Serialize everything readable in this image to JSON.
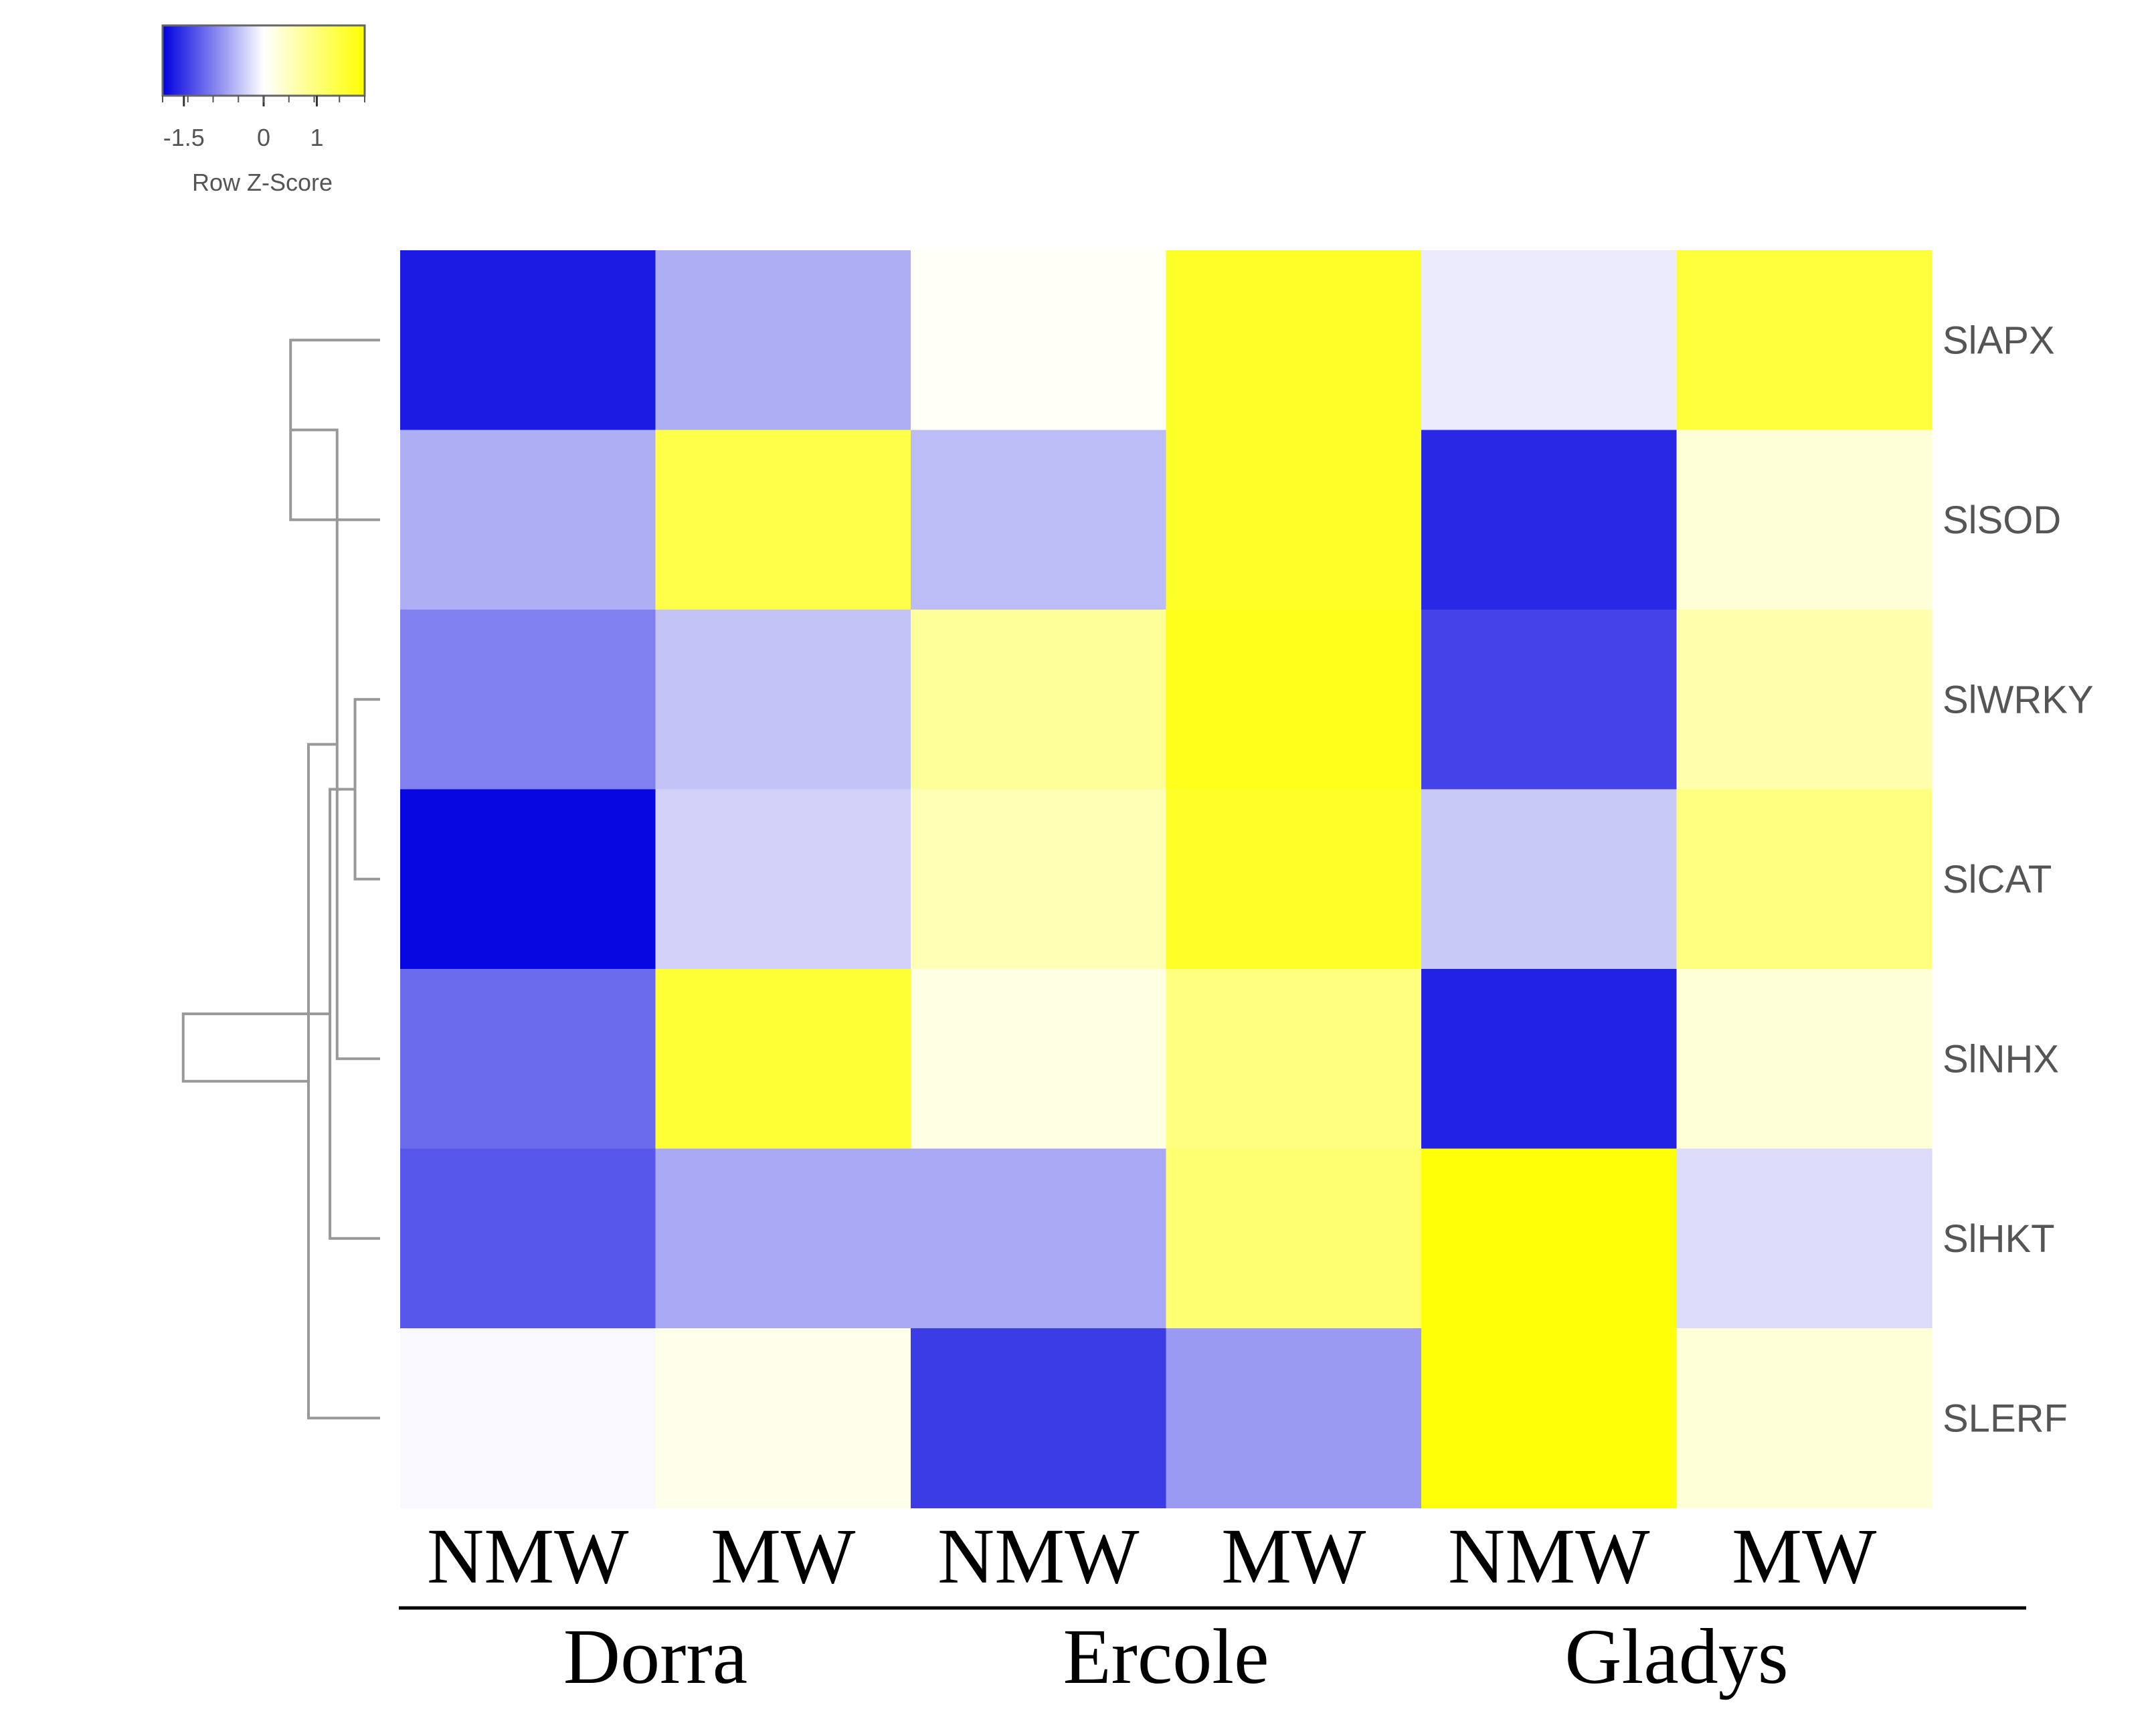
{
  "chart_data": {
    "type": "heatmap",
    "legend": {
      "title": "Row Z-Score",
      "ticks": [
        "-1.5",
        "0",
        "1"
      ],
      "tick_values": [
        -1.5,
        0,
        1
      ],
      "range": [
        -1.9,
        1.9
      ],
      "colors": {
        "low": "#0000e0",
        "mid": "#ffffff",
        "high": "#ffff00"
      },
      "placement": "top-left"
    },
    "columns": [
      "NMW",
      "MW",
      "NMW",
      "MW",
      "NMW",
      "MW"
    ],
    "groups": [
      {
        "label": "Dorra",
        "span": 2
      },
      {
        "label": "Ercole",
        "span": 2
      },
      {
        "label": "Gladys",
        "span": 2
      }
    ],
    "rows": [
      "SlAPX",
      "SlSOD",
      "SlWRKY",
      "SlCAT",
      "SlNHX",
      "SlHKT",
      "SLERF"
    ],
    "values": [
      [
        -1.7,
        -0.6,
        0.05,
        1.6,
        -0.15,
        1.45
      ],
      [
        -0.6,
        1.35,
        -0.5,
        1.6,
        -1.6,
        0.3
      ],
      [
        -0.95,
        -0.45,
        0.75,
        1.7,
        -1.4,
        0.6
      ],
      [
        -1.85,
        -0.35,
        0.55,
        1.6,
        -0.4,
        0.95
      ],
      [
        -1.1,
        1.5,
        0.2,
        0.95,
        -1.65,
        0.3
      ],
      [
        -1.25,
        -0.65,
        -0.65,
        1.05,
        1.85,
        -0.25
      ],
      [
        -0.05,
        0.15,
        -1.45,
        -0.75,
        1.85,
        0.3
      ]
    ],
    "dendrogram": {
      "leaves": [
        0,
        1,
        2,
        3,
        4,
        5,
        6
      ],
      "merges": [
        [
          0,
          1
        ],
        [
          2,
          3
        ],
        [
          7,
          4
        ],
        [
          8,
          5
        ],
        [
          9,
          6
        ],
        [
          10,
          11
        ]
      ],
      "heights": [
        0.25,
        0.07,
        0.12,
        0.14,
        0.2,
        0.55
      ]
    }
  }
}
